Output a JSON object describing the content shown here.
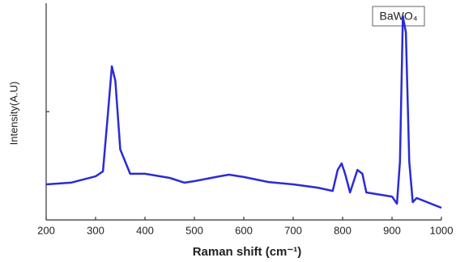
{
  "chart_data": {
    "type": "line",
    "x_label": "Raman shift (cm⁻¹)",
    "y_label": "Intensity(A.U)",
    "annotation": "BaWO₄",
    "x": [
      200,
      250,
      300,
      315,
      325,
      333,
      340,
      350,
      370,
      400,
      450,
      480,
      500,
      550,
      570,
      600,
      650,
      700,
      750,
      780,
      790,
      798,
      805,
      815,
      830,
      840,
      848,
      900,
      910,
      916,
      922,
      928,
      935,
      942,
      950,
      1000
    ],
    "values": [
      16.4,
      17.2,
      20.1,
      22.4,
      49.3,
      70.9,
      64.2,
      32.5,
      21.3,
      21.3,
      19.4,
      17.2,
      17.9,
      20.1,
      20.9,
      19.8,
      17.5,
      16.4,
      14.9,
      13.4,
      23.1,
      26.1,
      21.3,
      12.7,
      23.1,
      21.3,
      12.7,
      10.8,
      7.5,
      26.9,
      94.0,
      86.6,
      26.9,
      8.2,
      10.1,
      5.6
    ],
    "color": "#2b2bd6",
    "xlim": [
      200,
      1000
    ],
    "xticks": [
      200,
      300,
      400,
      500,
      600,
      700,
      800,
      900,
      1000
    ],
    "ylim": [
      0,
      100
    ]
  }
}
